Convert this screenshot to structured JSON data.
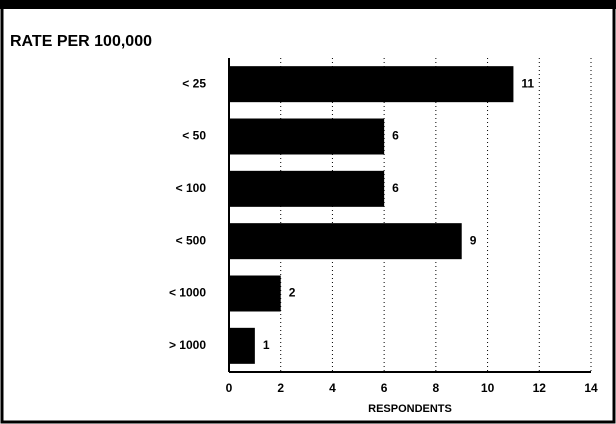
{
  "chart_data": {
    "type": "bar",
    "orientation": "horizontal",
    "title": "RATE PER 100,000",
    "x_label": "RESPONDENTS",
    "categories": [
      "< 25",
      "< 50",
      "< 100",
      "< 500",
      "< 1000",
      "> 1000"
    ],
    "values": [
      11,
      6,
      6,
      9,
      2,
      1
    ],
    "color": "#000000",
    "xlim": [
      0,
      14
    ],
    "xticks": [
      0,
      2,
      4,
      6,
      8,
      10,
      12,
      14
    ],
    "grid": true
  }
}
